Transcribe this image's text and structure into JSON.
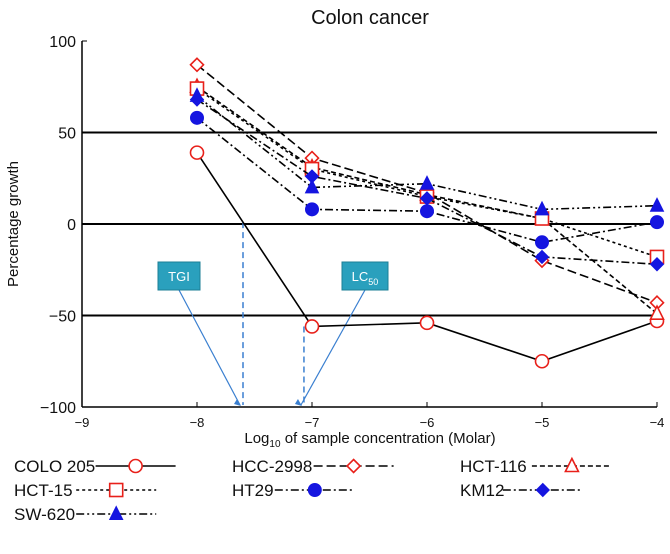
{
  "chart_data": {
    "type": "line",
    "title": "Colon cancer",
    "xlabel_prefix": "Log",
    "xlabel_sub": "10",
    "xlabel_suffix": " of sample concentration (Molar)",
    "ylabel": "Percentage growth",
    "xlim": [
      -9,
      -4
    ],
    "ylim": [
      -100,
      100
    ],
    "xticks": [
      "-9",
      "-8",
      "-7",
      "-6",
      "-5",
      "-4"
    ],
    "yticks": [
      "100",
      "50",
      "0",
      "-50",
      "-100"
    ],
    "reference_lines": [
      50,
      0,
      -50
    ],
    "x": [
      -8,
      -7,
      -6,
      -5,
      -4
    ],
    "series": [
      {
        "name": "COLO 205",
        "values": [
          39,
          -56,
          -54,
          -75,
          -53
        ],
        "marker": "circle-open",
        "color": "#e8201a",
        "dash": ""
      },
      {
        "name": "HCC-2998",
        "values": [
          87,
          36,
          17,
          -20,
          -43
        ],
        "marker": "diamond-open",
        "color": "#e8201a",
        "dash": "9,4"
      },
      {
        "name": "HCT-116",
        "values": [
          75,
          31,
          16,
          3,
          -49
        ],
        "marker": "triangle-open",
        "color": "#e8201a",
        "dash": "5,3"
      },
      {
        "name": "HCT-15",
        "values": [
          74,
          30,
          15,
          3,
          -18
        ],
        "marker": "square-open",
        "color": "#e8201a",
        "dash": "3,3"
      },
      {
        "name": "HT29",
        "values": [
          58,
          8,
          7,
          -10,
          1
        ],
        "marker": "circle-filled",
        "color": "#1515e0",
        "dash": "8,3,2,3"
      },
      {
        "name": "KM12",
        "values": [
          68,
          26,
          14,
          -18,
          -22
        ],
        "marker": "diamond-filled",
        "color": "#1515e0",
        "dash": "8,3,2,3"
      },
      {
        "name": "SW-620",
        "values": [
          70,
          20,
          22,
          8,
          10
        ],
        "marker": "triangle-filled",
        "color": "#1515e0",
        "dash": "8,3,2,3,2,3"
      }
    ],
    "annotations": [
      {
        "label": "TGI",
        "x": -7.6
      },
      {
        "label": "LC",
        "sub": "50",
        "x": -7.07
      }
    ]
  }
}
